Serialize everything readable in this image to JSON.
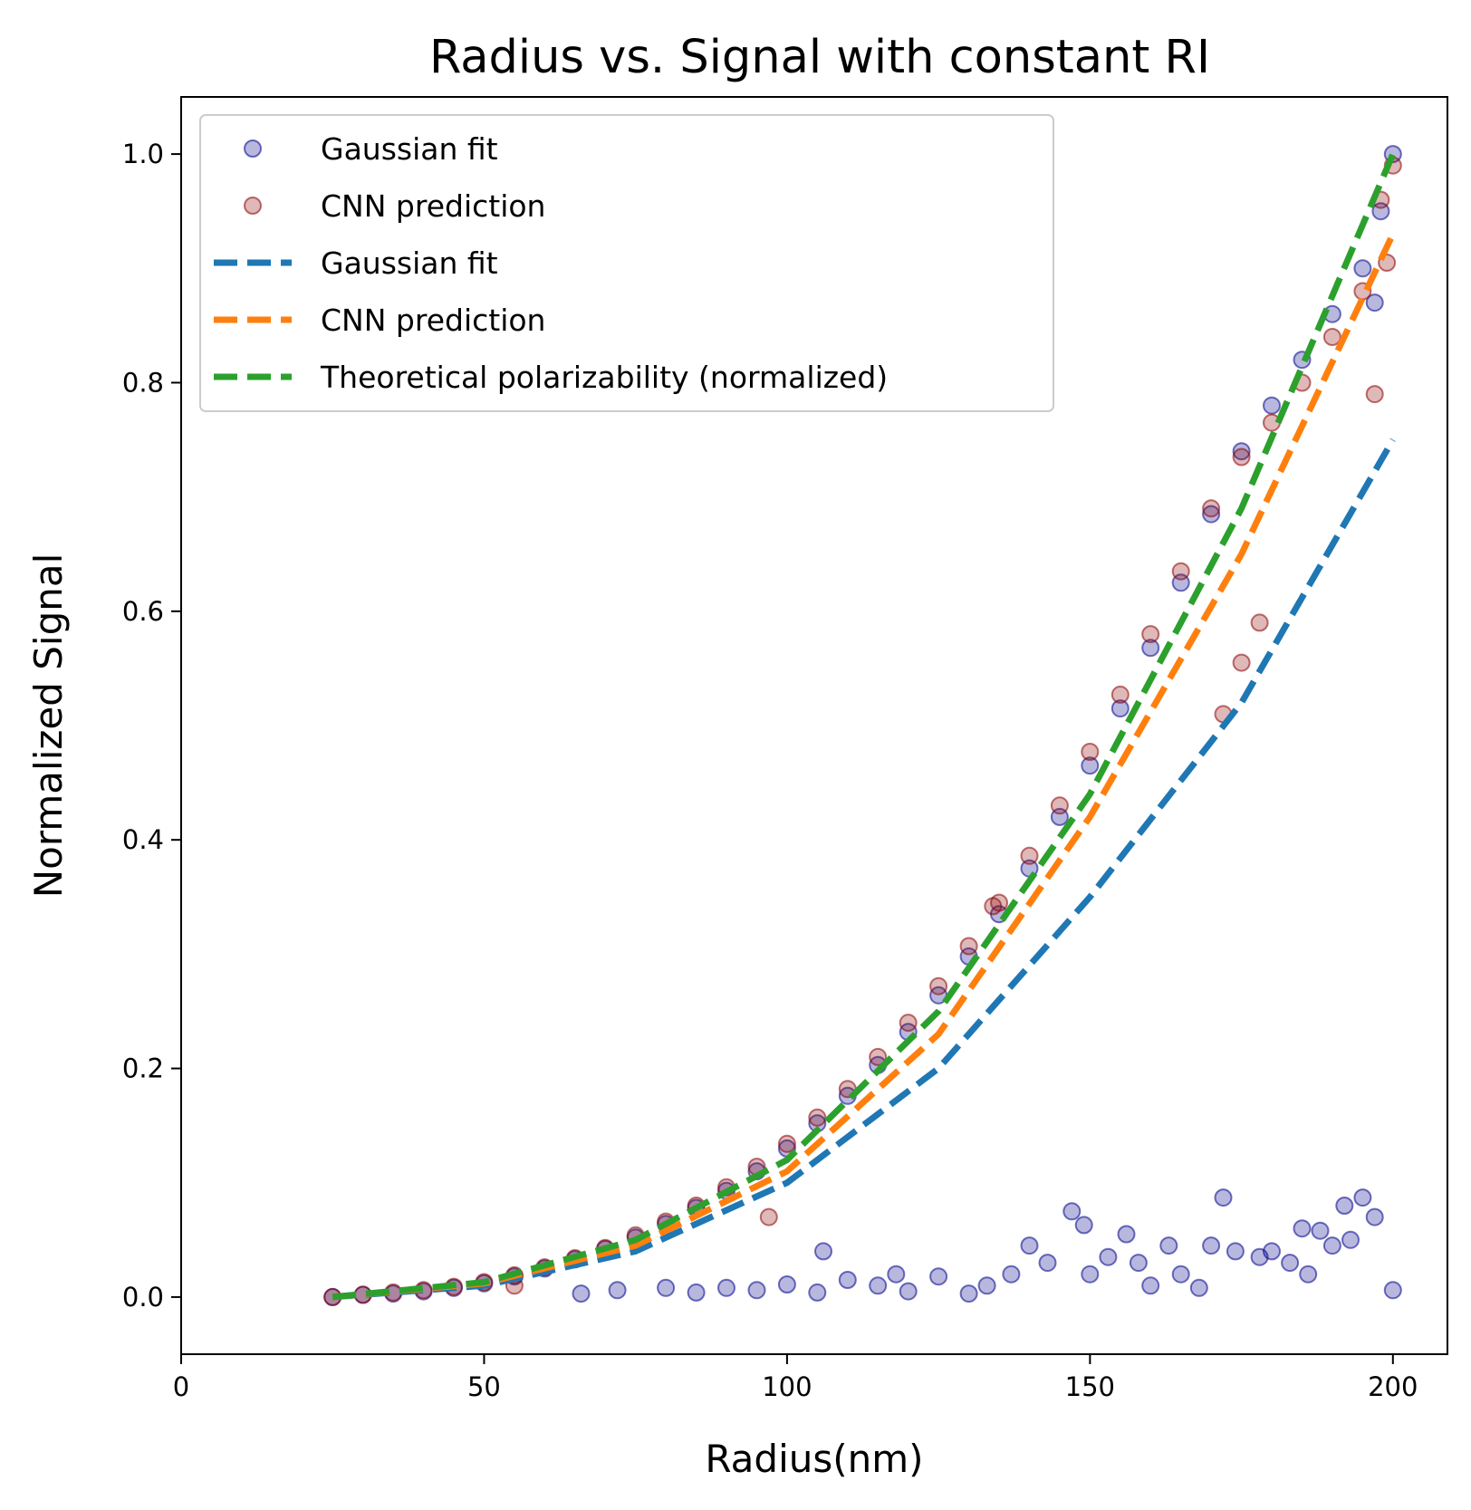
{
  "chart_data": {
    "type": "scatter",
    "title": "Radius vs. Signal with constant RI",
    "xlabel": "Radius(nm)",
    "ylabel": "Normalized Signal",
    "xlim": [
      0,
      209
    ],
    "ylim": [
      -0.05,
      1.05
    ],
    "xticks": [
      0,
      50,
      100,
      150,
      200
    ],
    "yticks": [
      0.0,
      0.2,
      0.4,
      0.6,
      0.8,
      1.0
    ],
    "xtick_labels": [
      "0",
      "50",
      "100",
      "150",
      "200"
    ],
    "ytick_labels": [
      "0.0",
      "0.2",
      "0.4",
      "0.6",
      "0.8",
      "1.0"
    ],
    "grid": false,
    "legend_position": "top-left",
    "legend": [
      {
        "label": "Gaussian fit",
        "kind": "marker",
        "color": "#00008b"
      },
      {
        "label": "CNN prediction",
        "kind": "marker",
        "color": "#8b0000"
      },
      {
        "label": "Gaussian fit",
        "kind": "dashed-line",
        "color": "#1f77b4"
      },
      {
        "label": "CNN prediction",
        "kind": "dashed-line",
        "color": "#ff7f0e"
      },
      {
        "label": "Theoretical polarizability (normalized)",
        "kind": "dashed-line",
        "color": "#2ca02c"
      }
    ],
    "lines": [
      {
        "name": "Gaussian fit",
        "color": "#1f77b4",
        "style": "dashed",
        "x": [
          25,
          50,
          75,
          100,
          125,
          150,
          175,
          200
        ],
        "y": [
          0.0,
          0.01,
          0.04,
          0.1,
          0.2,
          0.35,
          0.52,
          0.75
        ]
      },
      {
        "name": "CNN prediction",
        "color": "#ff7f0e",
        "style": "dashed",
        "x": [
          25,
          50,
          75,
          100,
          125,
          150,
          175,
          200
        ],
        "y": [
          0.0,
          0.012,
          0.045,
          0.11,
          0.23,
          0.42,
          0.65,
          0.93
        ]
      },
      {
        "name": "Theoretical polarizability (normalized)",
        "color": "#2ca02c",
        "style": "dashed",
        "x": [
          25,
          50,
          75,
          100,
          125,
          150,
          175,
          200
        ],
        "y": [
          0.0,
          0.013,
          0.05,
          0.12,
          0.25,
          0.44,
          0.69,
          1.0
        ]
      }
    ],
    "scatter": [
      {
        "name": "Gaussian fit",
        "color": "#00008b",
        "points": [
          [
            25,
            0.0
          ],
          [
            30,
            0.002
          ],
          [
            35,
            0.003
          ],
          [
            40,
            0.005
          ],
          [
            45,
            0.008
          ],
          [
            50,
            0.012
          ],
          [
            55,
            0.018
          ],
          [
            60,
            0.025
          ],
          [
            65,
            0.033
          ],
          [
            70,
            0.042
          ],
          [
            75,
            0.052
          ],
          [
            80,
            0.064
          ],
          [
            85,
            0.078
          ],
          [
            90,
            0.093
          ],
          [
            95,
            0.11
          ],
          [
            100,
            0.13
          ],
          [
            105,
            0.152
          ],
          [
            110,
            0.176
          ],
          [
            115,
            0.203
          ],
          [
            120,
            0.232
          ],
          [
            125,
            0.264
          ],
          [
            130,
            0.298
          ],
          [
            135,
            0.335
          ],
          [
            140,
            0.375
          ],
          [
            145,
            0.42
          ],
          [
            150,
            0.465
          ],
          [
            155,
            0.515
          ],
          [
            160,
            0.568
          ],
          [
            165,
            0.625
          ],
          [
            170,
            0.685
          ],
          [
            175,
            0.74
          ],
          [
            180,
            0.78
          ],
          [
            185,
            0.82
          ],
          [
            190,
            0.86
          ],
          [
            195,
            0.9
          ],
          [
            198,
            0.95
          ],
          [
            200,
            1.0
          ],
          [
            197,
            0.87
          ],
          [
            66,
            0.003
          ],
          [
            72,
            0.006
          ],
          [
            80,
            0.008
          ],
          [
            85,
            0.004
          ],
          [
            90,
            0.008
          ],
          [
            95,
            0.006
          ],
          [
            100,
            0.011
          ],
          [
            105,
            0.004
          ],
          [
            106,
            0.04
          ],
          [
            110,
            0.015
          ],
          [
            115,
            0.01
          ],
          [
            118,
            0.02
          ],
          [
            120,
            0.005
          ],
          [
            125,
            0.018
          ],
          [
            130,
            0.003
          ],
          [
            133,
            0.01
          ],
          [
            137,
            0.02
          ],
          [
            140,
            0.045
          ],
          [
            143,
            0.03
          ],
          [
            147,
            0.075
          ],
          [
            149,
            0.063
          ],
          [
            150,
            0.02
          ],
          [
            153,
            0.035
          ],
          [
            156,
            0.055
          ],
          [
            158,
            0.03
          ],
          [
            160,
            0.01
          ],
          [
            163,
            0.045
          ],
          [
            165,
            0.02
          ],
          [
            168,
            0.008
          ],
          [
            170,
            0.045
          ],
          [
            172,
            0.087
          ],
          [
            174,
            0.04
          ],
          [
            178,
            0.035
          ],
          [
            180,
            0.04
          ],
          [
            183,
            0.03
          ],
          [
            185,
            0.06
          ],
          [
            186,
            0.02
          ],
          [
            188,
            0.058
          ],
          [
            190,
            0.045
          ],
          [
            192,
            0.08
          ],
          [
            193,
            0.05
          ],
          [
            195,
            0.087
          ],
          [
            197,
            0.07
          ],
          [
            200,
            0.006
          ]
        ]
      },
      {
        "name": "CNN prediction",
        "color": "#8b0000",
        "points": [
          [
            25,
            0.0
          ],
          [
            30,
            0.002
          ],
          [
            35,
            0.004
          ],
          [
            40,
            0.006
          ],
          [
            45,
            0.009
          ],
          [
            50,
            0.013
          ],
          [
            55,
            0.019
          ],
          [
            60,
            0.026
          ],
          [
            65,
            0.034
          ],
          [
            70,
            0.043
          ],
          [
            75,
            0.054
          ],
          [
            80,
            0.066
          ],
          [
            85,
            0.08
          ],
          [
            90,
            0.096
          ],
          [
            95,
            0.114
          ],
          [
            100,
            0.134
          ],
          [
            105,
            0.157
          ],
          [
            110,
            0.182
          ],
          [
            115,
            0.21
          ],
          [
            120,
            0.24
          ],
          [
            125,
            0.272
          ],
          [
            130,
            0.307
          ],
          [
            135,
            0.345
          ],
          [
            140,
            0.386
          ],
          [
            145,
            0.43
          ],
          [
            150,
            0.477
          ],
          [
            155,
            0.527
          ],
          [
            160,
            0.58
          ],
          [
            165,
            0.635
          ],
          [
            170,
            0.69
          ],
          [
            175,
            0.735
          ],
          [
            180,
            0.765
          ],
          [
            185,
            0.8
          ],
          [
            190,
            0.84
          ],
          [
            195,
            0.88
          ],
          [
            198,
            0.96
          ],
          [
            200,
            0.99
          ],
          [
            199,
            0.905
          ],
          [
            197,
            0.79
          ],
          [
            175,
            0.555
          ],
          [
            172,
            0.51
          ],
          [
            178,
            0.59
          ],
          [
            134,
            0.342
          ],
          [
            97,
            0.07
          ],
          [
            55,
            0.01
          ]
        ]
      }
    ]
  }
}
